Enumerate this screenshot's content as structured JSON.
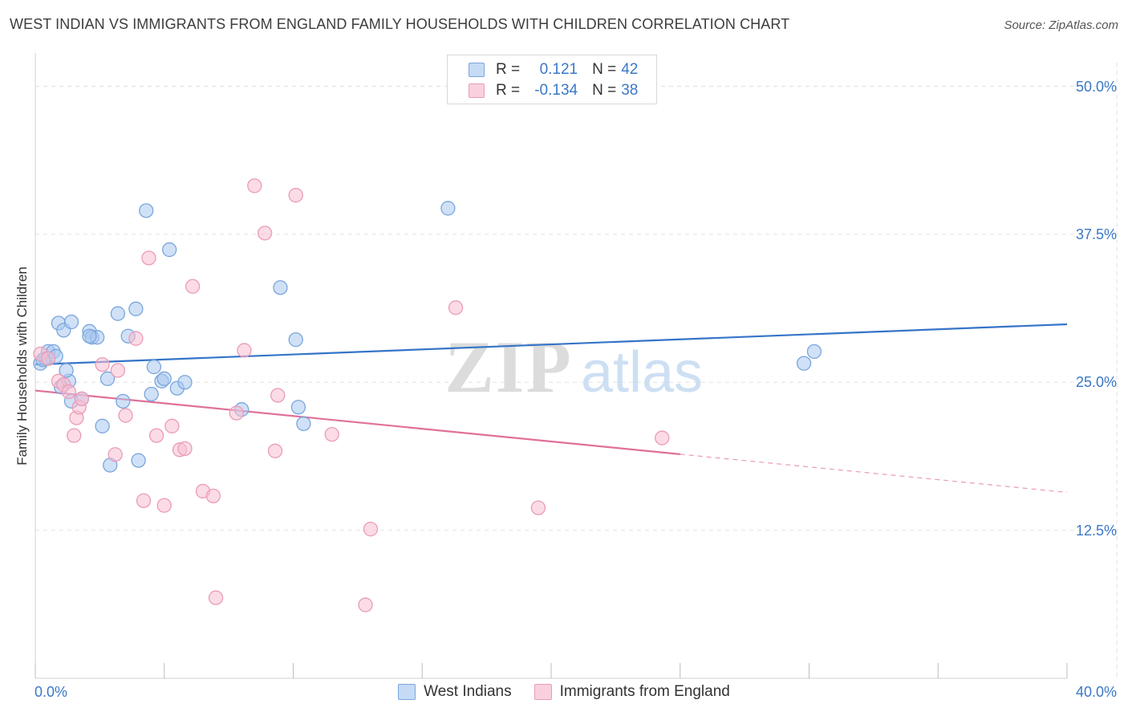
{
  "title": "WEST INDIAN VS IMMIGRANTS FROM ENGLAND FAMILY HOUSEHOLDS WITH CHILDREN CORRELATION CHART",
  "source": "Source: ZipAtlas.com",
  "legend": {
    "r_label": "R =",
    "n_label": "N =",
    "series": [
      {
        "r": "0.121",
        "n": "42"
      },
      {
        "r": "-0.134",
        "n": "38"
      }
    ]
  },
  "colors": {
    "blue_fill": "#aac9f0",
    "blue_stroke": "#7aa6dc",
    "blue_line": "#3574c8",
    "pink_fill": "#f7bfd2",
    "pink_stroke": "#eb9bb8",
    "pink_line": "#e0709a",
    "tick_text": "#3b78c6",
    "grid": "#e2e2e2"
  },
  "chart_data": {
    "type": "scatter",
    "title": "WEST INDIAN VS IMMIGRANTS FROM ENGLAND FAMILY HOUSEHOLDS WITH CHILDREN CORRELATION CHART",
    "xlabel": "",
    "ylabel": "Family Households with Children",
    "xlim": [
      0,
      40
    ],
    "ylim": [
      0,
      52
    ],
    "x_tick_labels": [
      {
        "value": 0,
        "label": "0.0%"
      },
      {
        "value": 40,
        "label": "40.0%"
      }
    ],
    "y_ticks": [
      {
        "value": 12.5,
        "label": "12.5%"
      },
      {
        "value": 25,
        "label": "25.0%"
      },
      {
        "value": 37.5,
        "label": "37.5%"
      },
      {
        "value": 50,
        "label": "50.0%"
      }
    ],
    "watermark": {
      "zip": "ZIP",
      "atlas": "atlas"
    },
    "series": [
      {
        "name": "West Indians",
        "r": 0.121,
        "n": 42,
        "trend": {
          "x0": 0,
          "y0": 26.5,
          "x1": 40,
          "y1": 29.9,
          "solid_until": 40
        },
        "points": [
          {
            "x": 0.2,
            "y": 26.6
          },
          {
            "x": 0.4,
            "y": 27.0
          },
          {
            "x": 0.5,
            "y": 27.6
          },
          {
            "x": 0.7,
            "y": 27.6
          },
          {
            "x": 0.8,
            "y": 27.2
          },
          {
            "x": 0.9,
            "y": 30.0
          },
          {
            "x": 1.1,
            "y": 29.4
          },
          {
            "x": 1.4,
            "y": 30.1
          },
          {
            "x": 2.1,
            "y": 29.3
          },
          {
            "x": 2.2,
            "y": 28.8
          },
          {
            "x": 2.4,
            "y": 28.8
          },
          {
            "x": 3.2,
            "y": 30.8
          },
          {
            "x": 3.6,
            "y": 28.9
          },
          {
            "x": 3.9,
            "y": 31.2
          },
          {
            "x": 1.0,
            "y": 24.6
          },
          {
            "x": 1.3,
            "y": 25.1
          },
          {
            "x": 1.4,
            "y": 23.4
          },
          {
            "x": 1.8,
            "y": 23.6
          },
          {
            "x": 2.8,
            "y": 25.3
          },
          {
            "x": 3.4,
            "y": 23.4
          },
          {
            "x": 4.5,
            "y": 24.0
          },
          {
            "x": 4.6,
            "y": 26.3
          },
          {
            "x": 4.9,
            "y": 25.1
          },
          {
            "x": 5.0,
            "y": 25.3
          },
          {
            "x": 5.5,
            "y": 24.5
          },
          {
            "x": 5.8,
            "y": 25.0
          },
          {
            "x": 2.6,
            "y": 21.3
          },
          {
            "x": 2.9,
            "y": 18.0
          },
          {
            "x": 4.0,
            "y": 18.4
          },
          {
            "x": 4.3,
            "y": 39.5
          },
          {
            "x": 5.2,
            "y": 36.2
          },
          {
            "x": 9.5,
            "y": 33.0
          },
          {
            "x": 10.1,
            "y": 28.6
          },
          {
            "x": 8.0,
            "y": 22.7
          },
          {
            "x": 10.2,
            "y": 22.9
          },
          {
            "x": 10.4,
            "y": 21.5
          },
          {
            "x": 16.0,
            "y": 39.7
          },
          {
            "x": 29.8,
            "y": 26.6
          },
          {
            "x": 30.2,
            "y": 27.6
          },
          {
            "x": 0.3,
            "y": 26.9
          },
          {
            "x": 2.1,
            "y": 28.9
          },
          {
            "x": 1.2,
            "y": 26.0
          }
        ]
      },
      {
        "name": "Immigrants from England",
        "r": -0.134,
        "n": 38,
        "trend": {
          "x0": 0,
          "y0": 24.3,
          "x1": 40,
          "y1": 15.7,
          "solid_until": 25
        },
        "points": [
          {
            "x": 0.2,
            "y": 27.4
          },
          {
            "x": 0.5,
            "y": 27.0
          },
          {
            "x": 0.9,
            "y": 25.1
          },
          {
            "x": 1.1,
            "y": 24.8
          },
          {
            "x": 1.3,
            "y": 24.2
          },
          {
            "x": 1.6,
            "y": 22.0
          },
          {
            "x": 1.7,
            "y": 22.9
          },
          {
            "x": 1.8,
            "y": 23.6
          },
          {
            "x": 2.6,
            "y": 26.5
          },
          {
            "x": 3.2,
            "y": 26.0
          },
          {
            "x": 3.5,
            "y": 22.2
          },
          {
            "x": 3.9,
            "y": 28.7
          },
          {
            "x": 1.5,
            "y": 20.5
          },
          {
            "x": 3.1,
            "y": 18.9
          },
          {
            "x": 4.4,
            "y": 35.5
          },
          {
            "x": 4.7,
            "y": 20.5
          },
          {
            "x": 5.3,
            "y": 21.3
          },
          {
            "x": 5.6,
            "y": 19.3
          },
          {
            "x": 5.8,
            "y": 19.4
          },
          {
            "x": 6.1,
            "y": 33.1
          },
          {
            "x": 4.2,
            "y": 15.0
          },
          {
            "x": 5.0,
            "y": 14.6
          },
          {
            "x": 6.5,
            "y": 15.8
          },
          {
            "x": 6.9,
            "y": 15.4
          },
          {
            "x": 7.0,
            "y": 6.8
          },
          {
            "x": 7.8,
            "y": 22.4
          },
          {
            "x": 8.1,
            "y": 27.7
          },
          {
            "x": 8.5,
            "y": 41.6
          },
          {
            "x": 8.9,
            "y": 37.6
          },
          {
            "x": 9.3,
            "y": 19.2
          },
          {
            "x": 9.4,
            "y": 23.9
          },
          {
            "x": 10.1,
            "y": 40.8
          },
          {
            "x": 11.5,
            "y": 20.6
          },
          {
            "x": 13.0,
            "y": 12.6
          },
          {
            "x": 12.8,
            "y": 6.2
          },
          {
            "x": 16.3,
            "y": 31.3
          },
          {
            "x": 19.5,
            "y": 14.4
          },
          {
            "x": 24.3,
            "y": 20.3
          }
        ]
      }
    ]
  }
}
